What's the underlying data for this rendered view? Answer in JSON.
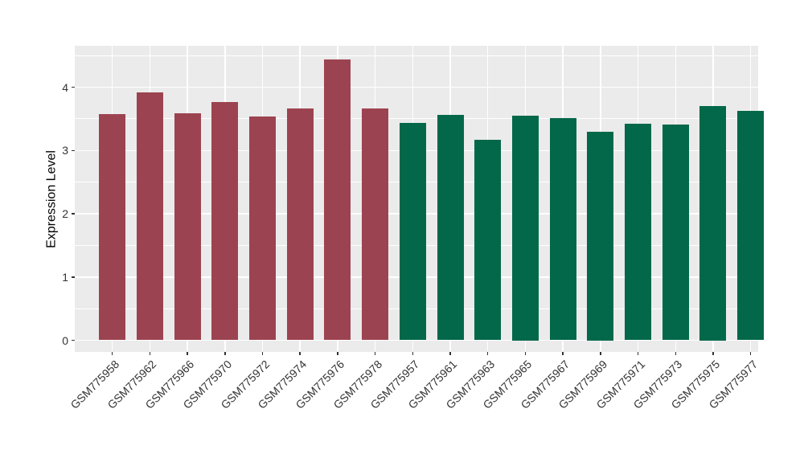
{
  "figure": {
    "y_axis_title": "Expression Level",
    "colors": {
      "page_background": "#FFFFFF",
      "panel_background": "#EBEBEB",
      "gridline": "#FFFFFF",
      "axis_text": "#333333",
      "axis_title": "#000000",
      "tick_mark": "#333333"
    }
  },
  "chart_data": {
    "type": "bar",
    "title": "",
    "xlabel": "",
    "ylabel": "Expression Level",
    "ylim": [
      0,
      4.65
    ],
    "yticks": [
      0,
      1,
      2,
      3,
      4
    ],
    "y_minor_ticks": [
      0.5,
      1.5,
      2.5,
      3.5,
      4.5
    ],
    "grid": true,
    "legend": "none",
    "categories": [
      "GSM775958",
      "GSM775962",
      "GSM775966",
      "GSM775970",
      "GSM775972",
      "GSM775974",
      "GSM775976",
      "GSM775978",
      "GSM775957",
      "GSM775961",
      "GSM775963",
      "GSM775965",
      "GSM775967",
      "GSM775969",
      "GSM775971",
      "GSM775973",
      "GSM775975",
      "GSM775977"
    ],
    "values": [
      3.58,
      3.92,
      3.59,
      3.77,
      3.54,
      3.66,
      4.44,
      3.66,
      3.43,
      3.56,
      3.17,
      3.55,
      3.51,
      3.3,
      3.42,
      3.41,
      3.7,
      3.62
    ],
    "groups": [
      "group1",
      "group1",
      "group1",
      "group1",
      "group1",
      "group1",
      "group1",
      "group1",
      "group2",
      "group2",
      "group2",
      "group2",
      "group2",
      "group2",
      "group2",
      "group2",
      "group2",
      "group2"
    ],
    "group_colors": {
      "group1": "#9C4351",
      "group2": "#026849"
    }
  }
}
